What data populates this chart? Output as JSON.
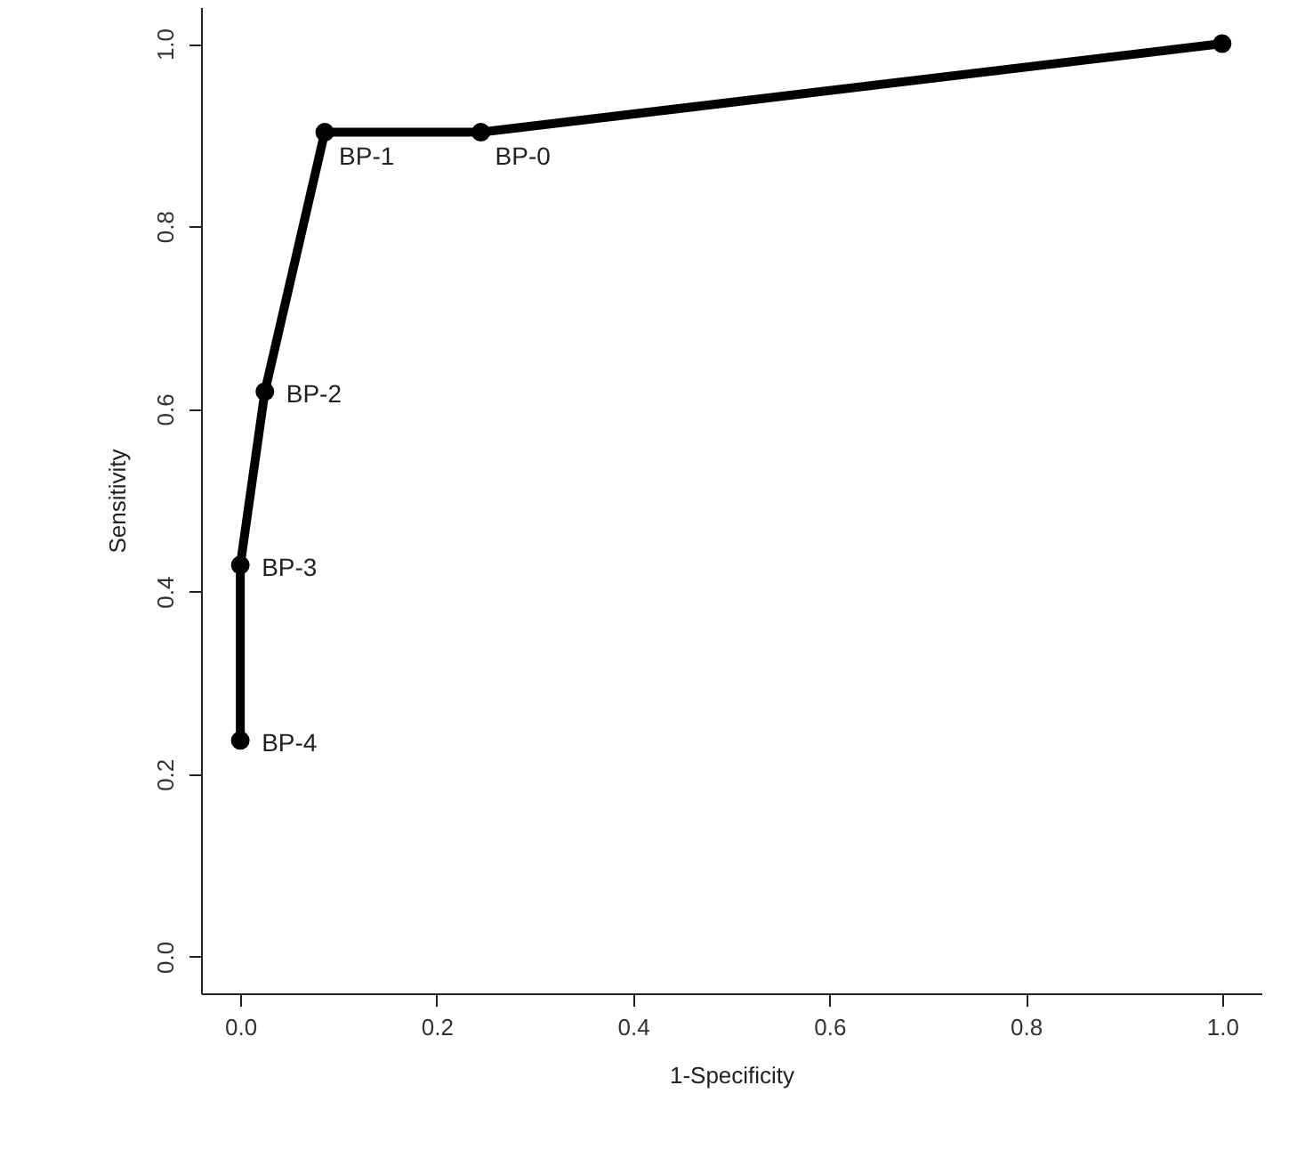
{
  "chart_data": {
    "type": "line",
    "xlabel": "1-Specificity",
    "ylabel": "Sensitivity",
    "series": [
      {
        "color": "#000000",
        "x": [
          0,
          0,
          0.025,
          0.086,
          0.245,
          1
        ],
        "values": [
          0.237,
          0.429,
          0.619,
          0.903,
          0.903,
          1
        ]
      }
    ],
    "annotations": [
      {
        "text": "BP-0",
        "x": 0.245,
        "y": 0.903
      },
      {
        "text": "BP-1",
        "x": 0.086,
        "y": 0.903
      },
      {
        "text": "BP-2",
        "x": 0.025,
        "y": 0.619
      },
      {
        "text": "BP-3",
        "x": 0,
        "y": 0.429
      },
      {
        "text": "BP-4",
        "x": 0,
        "y": 0.237
      }
    ],
    "xlim": [
      -0.04,
      1.04
    ],
    "ylim": [
      -0.04,
      1.04
    ],
    "xticks": [
      {
        "value": 0,
        "label": "0.0"
      },
      0.2,
      0.4,
      0.6,
      0.8,
      {
        "value": 1,
        "label": "1.0"
      }
    ],
    "yticks": [
      {
        "value": 0,
        "label": "0.0"
      },
      0.2,
      0.4,
      0.6,
      0.8,
      {
        "value": 1,
        "label": "1.0"
      }
    ],
    "marker": "circle",
    "line_style": "solid",
    "grid": false
  }
}
